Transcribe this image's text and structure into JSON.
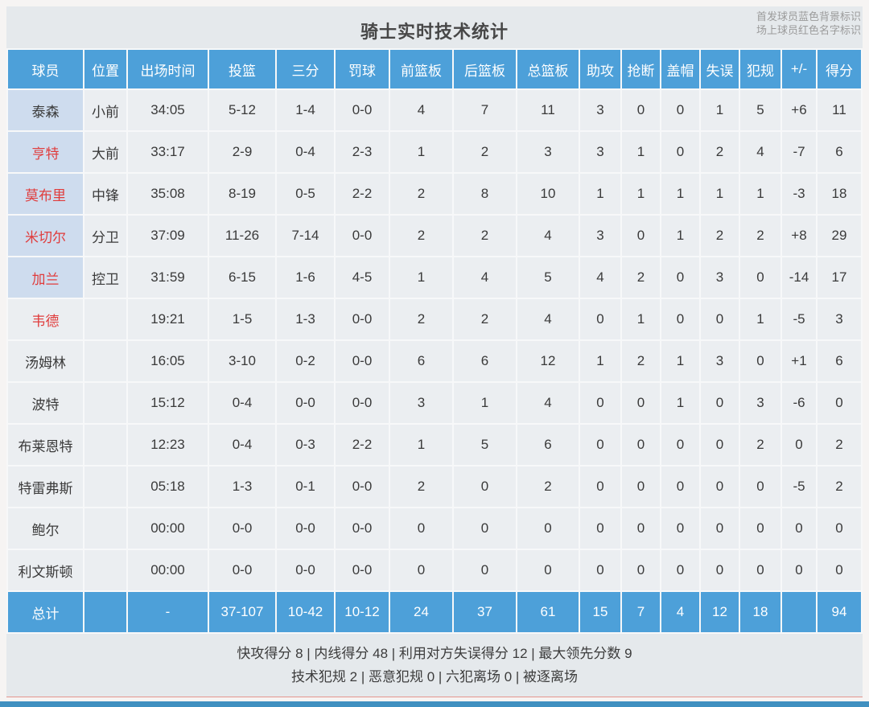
{
  "title": "骑士实时技术统计",
  "legend": {
    "line1": "首发球员蓝色背景标识",
    "line2": "场上球员红色名字标识"
  },
  "columns": [
    "球员",
    "位置",
    "出场时间",
    "投篮",
    "三分",
    "罚球",
    "前篮板",
    "后篮板",
    "总篮板",
    "助攻",
    "抢断",
    "盖帽",
    "失误",
    "犯规",
    "+/-",
    "得分"
  ],
  "players": [
    {
      "name": "泰森",
      "starter": true,
      "on_court": false,
      "stats": [
        "小前",
        "34:05",
        "5-12",
        "1-4",
        "0-0",
        "4",
        "7",
        "11",
        "3",
        "0",
        "0",
        "1",
        "5",
        "+6",
        "11"
      ]
    },
    {
      "name": "亨特",
      "starter": true,
      "on_court": true,
      "stats": [
        "大前",
        "33:17",
        "2-9",
        "0-4",
        "2-3",
        "1",
        "2",
        "3",
        "3",
        "1",
        "0",
        "2",
        "4",
        "-7",
        "6"
      ]
    },
    {
      "name": "莫布里",
      "starter": true,
      "on_court": true,
      "stats": [
        "中锋",
        "35:08",
        "8-19",
        "0-5",
        "2-2",
        "2",
        "8",
        "10",
        "1",
        "1",
        "1",
        "1",
        "1",
        "-3",
        "18"
      ]
    },
    {
      "name": "米切尔",
      "starter": true,
      "on_court": true,
      "stats": [
        "分卫",
        "37:09",
        "11-26",
        "7-14",
        "0-0",
        "2",
        "2",
        "4",
        "3",
        "0",
        "1",
        "2",
        "2",
        "+8",
        "29"
      ]
    },
    {
      "name": "加兰",
      "starter": true,
      "on_court": true,
      "stats": [
        "控卫",
        "31:59",
        "6-15",
        "1-6",
        "4-5",
        "1",
        "4",
        "5",
        "4",
        "2",
        "0",
        "3",
        "0",
        "-14",
        "17"
      ]
    },
    {
      "name": "韦德",
      "starter": false,
      "on_court": true,
      "stats": [
        "",
        "19:21",
        "1-5",
        "1-3",
        "0-0",
        "2",
        "2",
        "4",
        "0",
        "1",
        "0",
        "0",
        "1",
        "-5",
        "3"
      ]
    },
    {
      "name": "汤姆林",
      "starter": false,
      "on_court": false,
      "stats": [
        "",
        "16:05",
        "3-10",
        "0-2",
        "0-0",
        "6",
        "6",
        "12",
        "1",
        "2",
        "1",
        "3",
        "0",
        "+1",
        "6"
      ]
    },
    {
      "name": "波特",
      "starter": false,
      "on_court": false,
      "stats": [
        "",
        "15:12",
        "0-4",
        "0-0",
        "0-0",
        "3",
        "1",
        "4",
        "0",
        "0",
        "1",
        "0",
        "3",
        "-6",
        "0"
      ]
    },
    {
      "name": "布莱恩特",
      "starter": false,
      "on_court": false,
      "stats": [
        "",
        "12:23",
        "0-4",
        "0-3",
        "2-2",
        "1",
        "5",
        "6",
        "0",
        "0",
        "0",
        "0",
        "2",
        "0",
        "2"
      ]
    },
    {
      "name": "特雷弗斯",
      "starter": false,
      "on_court": false,
      "stats": [
        "",
        "05:18",
        "1-3",
        "0-1",
        "0-0",
        "2",
        "0",
        "2",
        "0",
        "0",
        "0",
        "0",
        "0",
        "-5",
        "2"
      ]
    },
    {
      "name": "鲍尔",
      "starter": false,
      "on_court": false,
      "stats": [
        "",
        "00:00",
        "0-0",
        "0-0",
        "0-0",
        "0",
        "0",
        "0",
        "0",
        "0",
        "0",
        "0",
        "0",
        "0",
        "0"
      ]
    },
    {
      "name": "利文斯顿",
      "starter": false,
      "on_court": false,
      "stats": [
        "",
        "00:00",
        "0-0",
        "0-0",
        "0-0",
        "0",
        "0",
        "0",
        "0",
        "0",
        "0",
        "0",
        "0",
        "0",
        "0"
      ]
    }
  ],
  "totals": {
    "label": "总计",
    "stats": [
      "",
      "-",
      "37-107",
      "10-42",
      "10-12",
      "24",
      "37",
      "61",
      "15",
      "7",
      "4",
      "12",
      "18",
      "",
      "94"
    ]
  },
  "summary": {
    "line1": "快攻得分 8 | 内线得分 48 | 利用对方失误得分 12 | 最大领先分数 9",
    "line2": "技术犯规 2 | 恶意犯规 0 | 六犯离场 0 | 被逐离场"
  },
  "colors": {
    "header_blue": "#4da0d9",
    "starter_cell_blue": "#cedcee",
    "on_court_red": "#e03c3c",
    "row_bg": "#ebeef1",
    "bottom_bar_blue": "#4090c0"
  }
}
